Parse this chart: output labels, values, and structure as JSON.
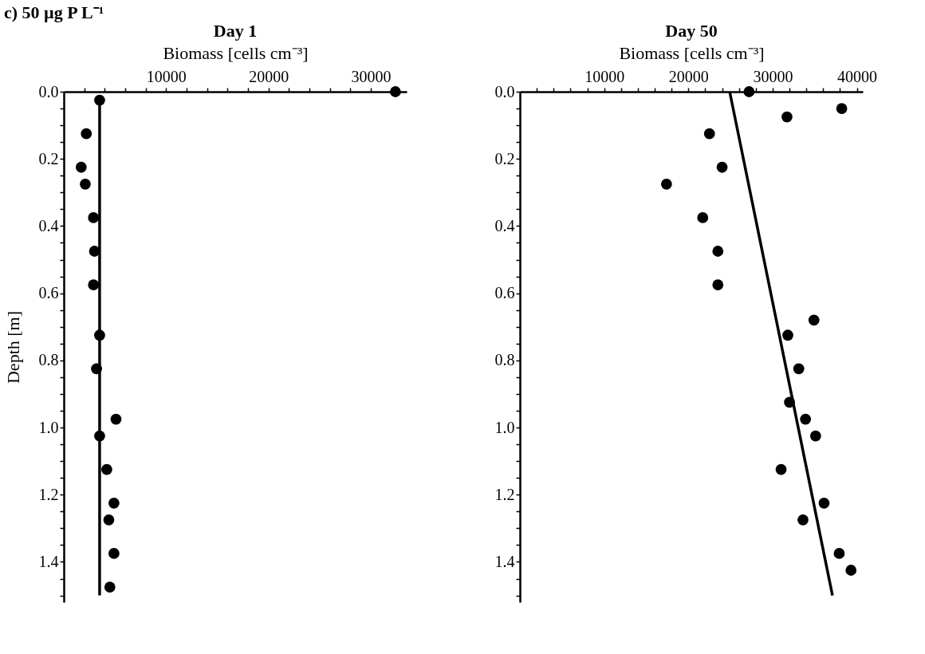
{
  "chart_data": [
    {
      "type": "scatter",
      "title": "Day 1",
      "xlabel": "Biomass [cells cm⁻³]",
      "ylabel": "Depth [m]",
      "annotations": [
        "c) 50 µg P L⁻¹"
      ],
      "xlim": [
        0,
        33500
      ],
      "ylim": [
        1.52,
        0
      ],
      "xticks": [
        {
          "value": 2000,
          "label": null
        },
        {
          "value": 4000,
          "label": null
        },
        {
          "value": 6000,
          "label": null
        },
        {
          "value": 8000,
          "label": null
        },
        10000,
        {
          "value": 12000,
          "label": null
        },
        {
          "value": 14000,
          "label": null
        },
        {
          "value": 16000,
          "label": null
        },
        {
          "value": 18000,
          "label": null
        },
        20000,
        {
          "value": 22000,
          "label": null
        },
        {
          "value": 24000,
          "label": null
        },
        {
          "value": 26000,
          "label": null
        },
        {
          "value": 28000,
          "label": null
        },
        30000,
        {
          "value": 32000,
          "label": null
        }
      ],
      "yticks": [
        {
          "value": 0,
          "label": "0.0"
        },
        {
          "value": 0.05,
          "label": null
        },
        {
          "value": 0.1,
          "label": null
        },
        {
          "value": 0.15,
          "label": null
        },
        0.2,
        {
          "value": 0.25,
          "label": null
        },
        {
          "value": 0.3,
          "label": null
        },
        {
          "value": 0.35,
          "label": null
        },
        0.4,
        {
          "value": 0.45,
          "label": null
        },
        {
          "value": 0.5,
          "label": null
        },
        {
          "value": 0.55,
          "label": null
        },
        0.6,
        {
          "value": 0.65,
          "label": null
        },
        {
          "value": 0.7,
          "label": null
        },
        {
          "value": 0.75,
          "label": null
        },
        0.8,
        {
          "value": 0.85,
          "label": null
        },
        {
          "value": 0.9,
          "label": null
        },
        {
          "value": 0.95,
          "label": null
        },
        {
          "value": 1,
          "label": "1.0"
        },
        {
          "value": 1.05,
          "label": null
        },
        {
          "value": 1.1,
          "label": null
        },
        {
          "value": 1.15,
          "label": null
        },
        1.2,
        {
          "value": 1.25,
          "label": null
        },
        {
          "value": 1.3,
          "label": null
        },
        {
          "value": 1.35,
          "label": null
        },
        1.4,
        {
          "value": 1.45,
          "label": null
        },
        {
          "value": 1.5,
          "label": null
        }
      ],
      "series": [
        {
          "marker": "circle",
          "color": "#000000",
          "x": [
            32400,
            3500,
            2200,
            1700,
            2100,
            2900,
            3000,
            2900,
            3500,
            3200,
            5100,
            3500,
            4200,
            4900,
            4400,
            4900,
            4500
          ],
          "values": [
            0,
            0.025,
            0.125,
            0.225,
            0.275,
            0.375,
            0.475,
            0.575,
            0.725,
            0.825,
            0.975,
            1.025,
            1.125,
            1.225,
            1.275,
            1.375,
            1.475
          ]
        },
        {
          "type": "line",
          "marker": "none",
          "color": "#000000",
          "line_style": "solid",
          "x": [
            3500,
            3500
          ],
          "values": [
            0.025,
            1.5
          ]
        }
      ]
    },
    {
      "type": "scatter",
      "title": "Day 50",
      "xlabel": "Biomass [cells cm⁻³]",
      "xlim": [
        0,
        40700
      ],
      "ylim": [
        1.52,
        0
      ],
      "xticks": [
        {
          "value": 2000,
          "label": null
        },
        {
          "value": 4000,
          "label": null
        },
        {
          "value": 6000,
          "label": null
        },
        {
          "value": 8000,
          "label": null
        },
        10000,
        {
          "value": 12000,
          "label": null
        },
        {
          "value": 14000,
          "label": null
        },
        {
          "value": 16000,
          "label": null
        },
        {
          "value": 18000,
          "label": null
        },
        20000,
        {
          "value": 22000,
          "label": null
        },
        {
          "value": 24000,
          "label": null
        },
        {
          "value": 26000,
          "label": null
        },
        {
          "value": 28000,
          "label": null
        },
        30000,
        {
          "value": 32000,
          "label": null
        },
        {
          "value": 34000,
          "label": null
        },
        {
          "value": 36000,
          "label": null
        },
        {
          "value": 38000,
          "label": null
        },
        40000
      ],
      "yticks": [
        {
          "value": 0,
          "label": "0.0"
        },
        {
          "value": 0.05,
          "label": null
        },
        {
          "value": 0.1,
          "label": null
        },
        {
          "value": 0.15,
          "label": null
        },
        0.2,
        {
          "value": 0.25,
          "label": null
        },
        {
          "value": 0.3,
          "label": null
        },
        {
          "value": 0.35,
          "label": null
        },
        0.4,
        {
          "value": 0.45,
          "label": null
        },
        {
          "value": 0.5,
          "label": null
        },
        {
          "value": 0.55,
          "label": null
        },
        0.6,
        {
          "value": 0.65,
          "label": null
        },
        {
          "value": 0.7,
          "label": null
        },
        {
          "value": 0.75,
          "label": null
        },
        0.8,
        {
          "value": 0.85,
          "label": null
        },
        {
          "value": 0.9,
          "label": null
        },
        {
          "value": 0.95,
          "label": null
        },
        {
          "value": 1,
          "label": "1.0"
        },
        {
          "value": 1.05,
          "label": null
        },
        {
          "value": 1.1,
          "label": null
        },
        {
          "value": 1.15,
          "label": null
        },
        1.2,
        {
          "value": 1.25,
          "label": null
        },
        {
          "value": 1.3,
          "label": null
        },
        {
          "value": 1.35,
          "label": null
        },
        1.4,
        {
          "value": 1.45,
          "label": null
        },
        {
          "value": 1.5,
          "label": null
        }
      ],
      "series": [
        {
          "marker": "circle",
          "color": "#000000",
          "x": [
            27200,
            38200,
            31700,
            22500,
            24000,
            17400,
            21700,
            23500,
            23500,
            34900,
            31800,
            33100,
            32000,
            33900,
            35100,
            31000,
            36100,
            33600,
            37900,
            39300
          ],
          "values": [
            0,
            0.05,
            0.075,
            0.125,
            0.225,
            0.275,
            0.375,
            0.475,
            0.575,
            0.68,
            0.725,
            0.825,
            0.925,
            0.975,
            1.025,
            1.125,
            1.225,
            1.275,
            1.375,
            1.425
          ]
        },
        {
          "type": "line",
          "marker": "none",
          "color": "#000000",
          "line_style": "solid",
          "x": [
            24900,
            37100
          ],
          "values": [
            0,
            1.5
          ]
        }
      ]
    }
  ]
}
